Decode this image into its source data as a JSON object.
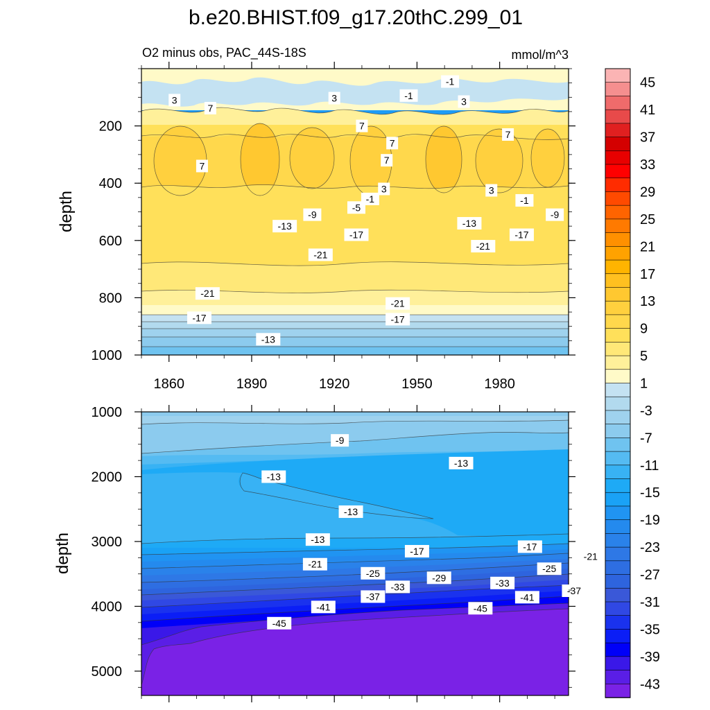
{
  "chart_data": {
    "type": "contour",
    "title": "b.e20.BHIST.f09_g17.20thC.299_01",
    "subtitle_left": "O2 minus obs, PAC_44S-18S",
    "subtitle_right": "mmol/m^3",
    "xlabel": "",
    "x_ticks": [
      1860,
      1890,
      1920,
      1950,
      1980
    ],
    "xlim": [
      1850,
      2005
    ],
    "colorbar": {
      "levels": [
        45,
        43,
        41,
        39,
        37,
        35,
        33,
        31,
        29,
        27,
        25,
        23,
        21,
        19,
        17,
        15,
        13,
        11,
        9,
        7,
        5,
        3,
        1,
        -1,
        -3,
        -5,
        -7,
        -9,
        -11,
        -13,
        -15,
        -17,
        -19,
        -21,
        -23,
        -25,
        -27,
        -29,
        -31,
        -33,
        -35,
        -37,
        -39,
        -41,
        -43,
        -45
      ],
      "labels": [
        "45",
        "41",
        "37",
        "33",
        "29",
        "25",
        "21",
        "17",
        "13",
        "9",
        "5",
        "1",
        "-3",
        "-7",
        "-11",
        "-15",
        "-19",
        "-23",
        "-27",
        "-31",
        "-35",
        "-39",
        "-43"
      ],
      "colors": [
        "#fbb4b4",
        "#f58f8f",
        "#ef6b6b",
        "#e84a4a",
        "#e02020",
        "#d40000",
        "#e80000",
        "#ff0000",
        "#ff2c00",
        "#ff4a00",
        "#ff6400",
        "#ff7a00",
        "#ff9000",
        "#ffa200",
        "#ffb400",
        "#ffc020",
        "#ffc830",
        "#ffd03e",
        "#ffd84c",
        "#ffe05a",
        "#ffe878",
        "#fff09a",
        "#fffac8",
        "#c4e2f2",
        "#b2daee",
        "#9fd2ee",
        "#8ccbee",
        "#6fc3f0",
        "#55bbf2",
        "#38b2f4",
        "#1eaaf6",
        "#1aa2f6",
        "#2094f2",
        "#248aee",
        "#2a82ea",
        "#2e78e6",
        "#2e6ee2",
        "#2e64de",
        "#3a58d8",
        "#3048e4",
        "#1a32ee",
        "#0b1ef6",
        "#0000f8",
        "#3a18e8",
        "#5a1ee6",
        "#7a22e6"
      ]
    },
    "panels": [
      {
        "name": "upper-ocean",
        "ylabel": "depth",
        "y_ticks": [
          200,
          400,
          600,
          800,
          1000
        ],
        "ylim": [
          0,
          1000
        ],
        "contour_labels": [
          {
            "text": "-1",
            "x": 1962,
            "y": 45
          },
          {
            "text": "-1",
            "x": 1947,
            "y": 94
          },
          {
            "text": "3",
            "x": 1862,
            "y": 110
          },
          {
            "text": "3",
            "x": 1920,
            "y": 103
          },
          {
            "text": "3",
            "x": 1967,
            "y": 115
          },
          {
            "text": "7",
            "x": 1875,
            "y": 138
          },
          {
            "text": "7",
            "x": 1930,
            "y": 200
          },
          {
            "text": "7",
            "x": 1941,
            "y": 260
          },
          {
            "text": "7",
            "x": 1983,
            "y": 230
          },
          {
            "text": "7",
            "x": 1872,
            "y": 340
          },
          {
            "text": "7",
            "x": 1939,
            "y": 320
          },
          {
            "text": "3",
            "x": 1938,
            "y": 420
          },
          {
            "text": "3",
            "x": 1977,
            "y": 425
          },
          {
            "text": "-1",
            "x": 1933,
            "y": 455
          },
          {
            "text": "-1",
            "x": 1989,
            "y": 460
          },
          {
            "text": "-5",
            "x": 1928,
            "y": 485
          },
          {
            "text": "-9",
            "x": 1912,
            "y": 510
          },
          {
            "text": "-9",
            "x": 2000,
            "y": 510
          },
          {
            "text": "-13",
            "x": 1902,
            "y": 550
          },
          {
            "text": "-13",
            "x": 1969,
            "y": 540
          },
          {
            "text": "-17",
            "x": 1928,
            "y": 580
          },
          {
            "text": "-17",
            "x": 1988,
            "y": 580
          },
          {
            "text": "-21",
            "x": 1915,
            "y": 650
          },
          {
            "text": "-21",
            "x": 1974,
            "y": 620
          },
          {
            "text": "-21",
            "x": 1874,
            "y": 785
          },
          {
            "text": "-21",
            "x": 1943,
            "y": 820
          },
          {
            "text": "-17",
            "x": 1871,
            "y": 870
          },
          {
            "text": "-17",
            "x": 1943,
            "y": 875
          },
          {
            "text": "-13",
            "x": 1896,
            "y": 945
          }
        ]
      },
      {
        "name": "deep-ocean",
        "ylabel": "depth",
        "y_ticks": [
          1000,
          2000,
          3000,
          4000,
          5000
        ],
        "ylim": [
          1000,
          5375
        ],
        "contour_labels": [
          {
            "text": "-9",
            "x": 1922,
            "y": 1440
          },
          {
            "text": "-13",
            "x": 1966,
            "y": 1790
          },
          {
            "text": "-13",
            "x": 1898,
            "y": 2000
          },
          {
            "text": "-13",
            "x": 1926,
            "y": 2540
          },
          {
            "text": "-13",
            "x": 1914,
            "y": 2970
          },
          {
            "text": "-17",
            "x": 1950,
            "y": 3150
          },
          {
            "text": "-17",
            "x": 1991,
            "y": 3080
          },
          {
            "text": "-21",
            "x": 1913,
            "y": 3350
          },
          {
            "text": "-21",
            "x": 2013,
            "y": 3230
          },
          {
            "text": "-25",
            "x": 1934,
            "y": 3490
          },
          {
            "text": "-25",
            "x": 1998,
            "y": 3420
          },
          {
            "text": "-29",
            "x": 1958,
            "y": 3560
          },
          {
            "text": "-33",
            "x": 1943,
            "y": 3700
          },
          {
            "text": "-33",
            "x": 1981,
            "y": 3640
          },
          {
            "text": "-37",
            "x": 1934,
            "y": 3850
          },
          {
            "text": "-37",
            "x": 2007,
            "y": 3760
          },
          {
            "text": "-41",
            "x": 1916,
            "y": 4010
          },
          {
            "text": "-41",
            "x": 1990,
            "y": 3860
          },
          {
            "text": "-45",
            "x": 1900,
            "y": 4260
          },
          {
            "text": "-45",
            "x": 1973,
            "y": 4030
          }
        ]
      }
    ]
  }
}
